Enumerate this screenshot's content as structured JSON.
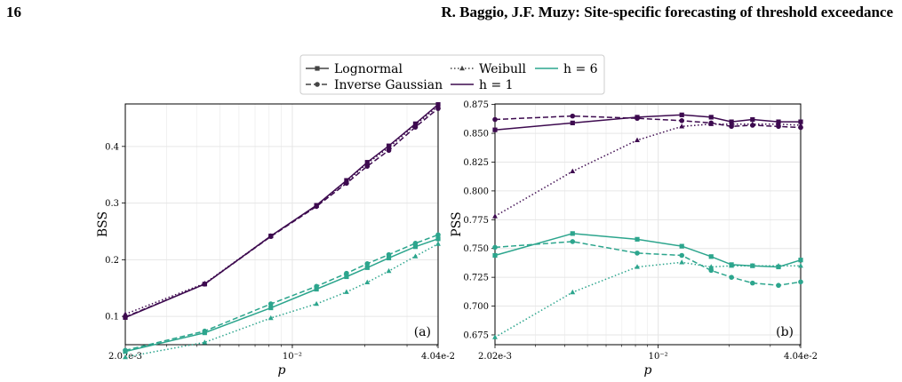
{
  "page": {
    "number": "16",
    "running_head": "R. Baggio, J.F. Muzy: Site-specific forecasting of threshold exceedance"
  },
  "legend": {
    "items": [
      {
        "label": "Lognormal",
        "style": "solid",
        "marker": "square"
      },
      {
        "label": "Inverse Gaussian",
        "style": "dashed",
        "marker": "circle"
      },
      {
        "label": "Weibull",
        "style": "dotted",
        "marker": "triangle"
      },
      {
        "label": "h = 1",
        "style": "solid",
        "color": "#3d0a4f"
      },
      {
        "label": "h = 6",
        "style": "solid",
        "color": "#2ca58d"
      }
    ]
  },
  "colors": {
    "h1": "#3d0a4f",
    "h6": "#2ca58d",
    "grid": "#e6e6e6",
    "axis": "#000000"
  },
  "chart_data": [
    {
      "type": "line",
      "panel_label": "(a)",
      "ylabel": "BSS",
      "xlabel": "p",
      "x_scale": "log",
      "x": [
        0.00202,
        0.00432,
        0.00814,
        0.0126,
        0.0168,
        0.0205,
        0.0252,
        0.0325,
        0.0404
      ],
      "xlim": [
        0.00202,
        0.0404
      ],
      "ylim": [
        0.05,
        0.475
      ],
      "yticks": [
        "0.1",
        "0.2",
        "0.3",
        "0.4"
      ],
      "ytick_values": [
        0.1,
        0.2,
        0.3,
        0.4
      ],
      "xticks": [
        {
          "value": 0.00202,
          "label": "2.02e-3"
        },
        {
          "value": 0.01,
          "label": "10⁻²"
        },
        {
          "value": 0.0404,
          "label": "4.04e-2"
        }
      ],
      "grid": true,
      "series": [
        {
          "name": "Lognormal",
          "h": "h = 1",
          "values": [
            0.098,
            0.157,
            0.242,
            0.296,
            0.34,
            0.372,
            0.401,
            0.44,
            0.474
          ]
        },
        {
          "name": "Inverse Gaussian",
          "h": "h = 1",
          "values": [
            0.099,
            0.157,
            0.241,
            0.294,
            0.335,
            0.365,
            0.393,
            0.434,
            0.467
          ]
        },
        {
          "name": "Weibull",
          "h": "h = 1",
          "values": [
            0.104,
            0.158,
            0.242,
            0.295,
            0.338,
            0.37,
            0.398,
            0.438,
            0.471
          ]
        },
        {
          "name": "Lognormal",
          "h": "h = 6",
          "values": [
            0.038,
            0.071,
            0.115,
            0.148,
            0.17,
            0.186,
            0.203,
            0.223,
            0.237
          ]
        },
        {
          "name": "Inverse Gaussian",
          "h": "h = 6",
          "values": [
            0.04,
            0.074,
            0.122,
            0.153,
            0.176,
            0.193,
            0.209,
            0.229,
            0.244
          ]
        },
        {
          "name": "Weibull",
          "h": "h = 6",
          "values": [
            0.028,
            0.054,
            0.097,
            0.122,
            0.143,
            0.16,
            0.18,
            0.206,
            0.228
          ]
        }
      ]
    },
    {
      "type": "line",
      "panel_label": "(b)",
      "ylabel": "PSS",
      "xlabel": "p",
      "x_scale": "log",
      "x": [
        0.00202,
        0.00432,
        0.00814,
        0.0126,
        0.0168,
        0.0205,
        0.0252,
        0.0325,
        0.0404
      ],
      "xlim": [
        0.00202,
        0.0404
      ],
      "ylim": [
        0.6665,
        0.8755
      ],
      "yticks": [
        "0.675",
        "0.700",
        "0.725",
        "0.750",
        "0.775",
        "0.800",
        "0.825",
        "0.850",
        "0.875"
      ],
      "ytick_values": [
        0.675,
        0.7,
        0.725,
        0.75,
        0.775,
        0.8,
        0.825,
        0.85,
        0.875
      ],
      "xticks": [
        {
          "value": 0.00202,
          "label": "2.02e-3"
        },
        {
          "value": 0.01,
          "label": "10⁻²"
        },
        {
          "value": 0.0404,
          "label": "4.04e-2"
        }
      ],
      "grid": true,
      "series": [
        {
          "name": "Lognormal",
          "h": "h = 1",
          "values": [
            0.853,
            0.859,
            0.864,
            0.866,
            0.864,
            0.86,
            0.862,
            0.86,
            0.86
          ]
        },
        {
          "name": "Inverse Gaussian",
          "h": "h = 1",
          "values": [
            0.862,
            0.865,
            0.863,
            0.861,
            0.859,
            0.856,
            0.857,
            0.856,
            0.855
          ]
        },
        {
          "name": "Weibull",
          "h": "h = 1",
          "values": [
            0.778,
            0.817,
            0.844,
            0.856,
            0.858,
            0.858,
            0.858,
            0.858,
            0.857
          ]
        },
        {
          "name": "Lognormal",
          "h": "h = 6",
          "values": [
            0.744,
            0.763,
            0.758,
            0.752,
            0.743,
            0.736,
            0.735,
            0.734,
            0.74
          ]
        },
        {
          "name": "Inverse Gaussian",
          "h": "h = 6",
          "values": [
            0.751,
            0.756,
            0.746,
            0.744,
            0.731,
            0.725,
            0.72,
            0.718,
            0.721
          ]
        },
        {
          "name": "Weibull",
          "h": "h = 6",
          "values": [
            0.673,
            0.712,
            0.734,
            0.738,
            0.734,
            0.735,
            0.735,
            0.735,
            0.735
          ]
        }
      ]
    }
  ]
}
